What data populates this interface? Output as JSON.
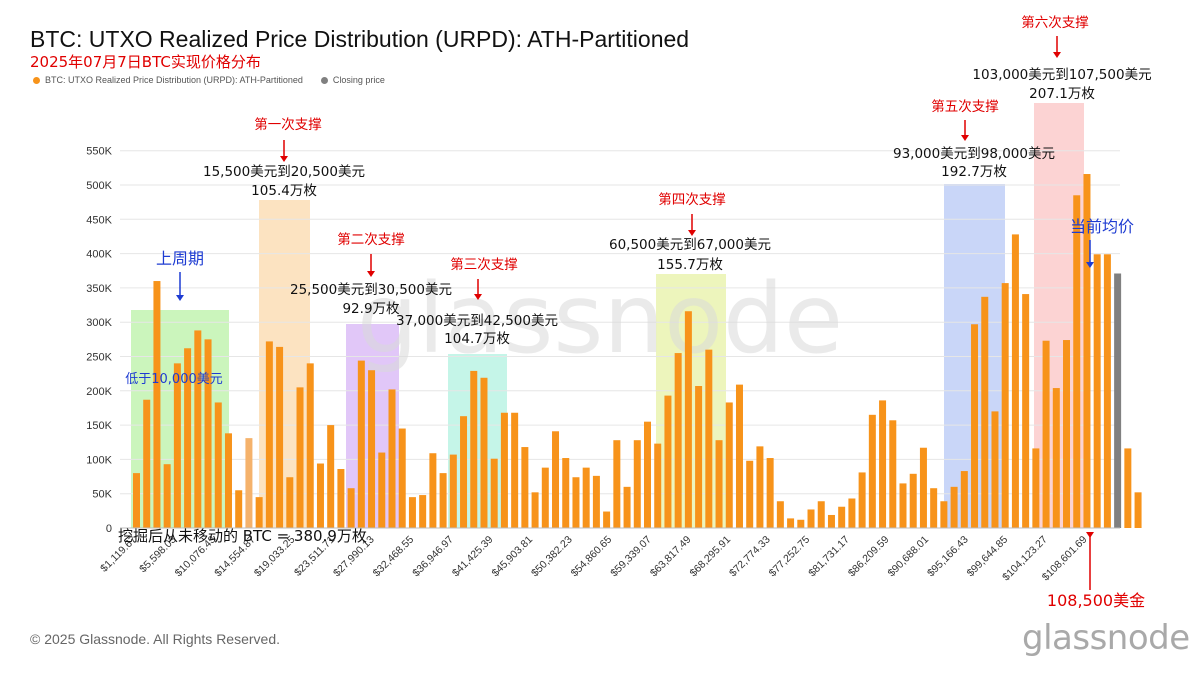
{
  "title": "BTC: UTXO Realized Price Distribution (URPD): ATH-Partitioned",
  "subtitle": "2025年07月7日BTC实现价格分布",
  "legend": [
    {
      "label": "BTC: UTXO Realized Price Distribution (URPD): ATH-Partitioned",
      "color": "#f7931a"
    },
    {
      "label": "Closing price",
      "color": "#808080"
    }
  ],
  "footer": "© 2025 Glassnode. All Rights Reserved.",
  "brand": "glassnode",
  "watermark": "glassnode",
  "colors": {
    "bar": "#f7931a",
    "bar_light": "#f5b26b",
    "closing": "#808080",
    "annotation_red": "#e00000",
    "annotation_blue": "#1e3cd2",
    "green_band": "#b9f2a6",
    "orange_band": "#fbd9ac",
    "purple_band": "#d7b4f6",
    "teal_band": "#b2f2e0",
    "lime_band": "#e7f2a6",
    "blue_band": "#b7c8f6",
    "pink_band": "#fbc4c4"
  },
  "chart_data": {
    "type": "bar",
    "title": "BTC: UTXO Realized Price Distribution (URPD): ATH-Partitioned",
    "ylim": [
      0,
      570000
    ],
    "y_ticks": [
      "0",
      "50K",
      "100K",
      "150K",
      "200K",
      "250K",
      "300K",
      "350K",
      "400K",
      "450K",
      "500K",
      "550K"
    ],
    "x_tick_labels": [
      "$1,119.67",
      "$5,598.03",
      "$10,076.43",
      "$14,554.87",
      "$19,033.25",
      "$23,511.71",
      "$27,990.13",
      "$32,468.55",
      "$36,946.97",
      "$41,425.39",
      "$45,903.81",
      "$50,382.23",
      "$54,860.65",
      "$59,339.07",
      "$63,817.49",
      "$68,295.91",
      "$72,774.33",
      "$77,252.75",
      "$81,731.17",
      "$86,209.59",
      "$90,688.01",
      "$95,166.43",
      "$99,644.85",
      "$104,123.27",
      "$108,601.69"
    ],
    "grid": true,
    "legend_position": "top-left",
    "series": [
      {
        "name": "BTC: UTXO Realized Price Distribution (URPD): ATH-Partitioned",
        "values": [
          80000,
          187000,
          360000,
          93000,
          240000,
          262000,
          288000,
          275000,
          183000,
          138000,
          55000,
          131000,
          45000,
          272000,
          264000,
          74000,
          205000,
          240000,
          94000,
          150000,
          86000,
          58000,
          244000,
          230000,
          110000,
          202000,
          145000,
          45000,
          48000,
          109000,
          80000,
          107000,
          163000,
          229000,
          219000,
          101000,
          168000,
          168000,
          118000,
          52000,
          88000,
          141000,
          102000,
          74000,
          88000,
          76000,
          24000,
          128000,
          60000,
          128000,
          155000,
          123000,
          193000,
          255000,
          316000,
          207000,
          260000,
          128000,
          183000,
          209000,
          98000,
          119000,
          102000,
          39000,
          14000,
          12000,
          27000,
          39000,
          19000,
          31000,
          43000,
          81000,
          165000,
          186000,
          157000,
          65000,
          79000,
          117000,
          58000,
          39000,
          60000,
          83000,
          297000,
          337000,
          170000,
          357000,
          428000,
          341000,
          116000,
          273000,
          204000,
          274000,
          485000,
          516000,
          399000,
          399000
        ]
      },
      {
        "name": "Closing price",
        "bar_index": 96,
        "value": 371000
      }
    ],
    "after_close_values": [
      116000,
      52000
    ],
    "light_bar_index": 11
  },
  "annotations": {
    "cycle_label": "上周期",
    "below_10k": "低于10,000美元",
    "first_support": "第一次支撑",
    "first_range": "15,500美元到20,500美元",
    "first_amount": "105.4万枚",
    "second_support": "第二次支撑",
    "second_range": "25,500美元到30,500美元",
    "second_amount": "92.9万枚",
    "third_support": "第三次支撑",
    "third_range": "37,000美元到42,500美元",
    "third_amount": "104.7万枚",
    "fourth_support": "第四次支撑",
    "fourth_range": "60,500美元到67,000美元",
    "fourth_amount": "155.7万枚",
    "fifth_support": "第五次支撑",
    "fifth_range": "93,000美元到98,000美元",
    "fifth_amount": "192.7万枚",
    "sixth_support": "第六次支撑",
    "sixth_range": "103,000美元到107,500美元",
    "sixth_amount": "207.1万枚",
    "current_avg": "当前均价",
    "current_price": "108,500美金",
    "unmoved_note": "挖掘后从未移动的 BTC = 380.9万枚"
  }
}
